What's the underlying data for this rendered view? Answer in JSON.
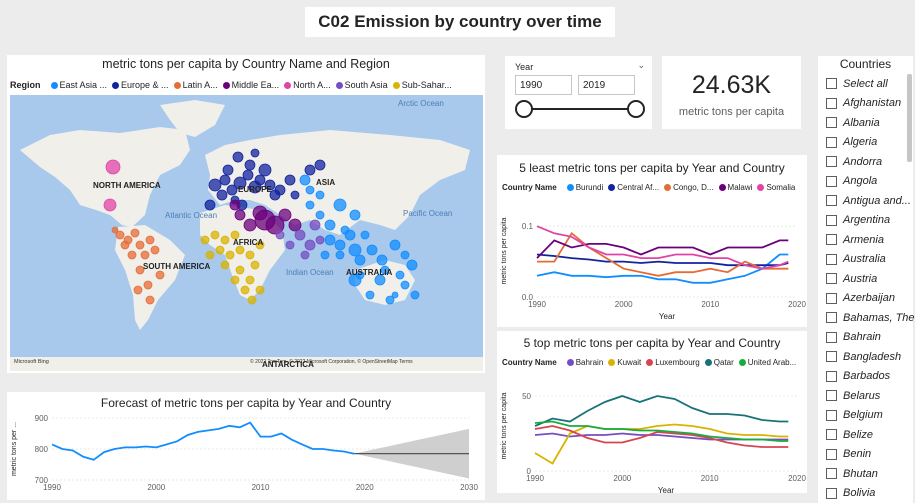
{
  "page_title": "C02 Emission by country over time",
  "map": {
    "title": "metric tons per capita by Country Name and Region",
    "legend_label": "Region",
    "legend": [
      {
        "name": "East Asia ...",
        "color": "#118dff"
      },
      {
        "name": "Europe & ...",
        "color": "#12239e"
      },
      {
        "name": "Latin A...",
        "color": "#e66c37"
      },
      {
        "name": "Middle Ea...",
        "color": "#6b007b"
      },
      {
        "name": "North A...",
        "color": "#e044a7"
      },
      {
        "name": "South Asia",
        "color": "#744ec2"
      },
      {
        "name": "Sub-Sahar...",
        "color": "#d9b300"
      }
    ],
    "labels": {
      "north_america": "NORTH AMERICA",
      "south_america": "SOUTH AMERICA",
      "europe": "EUROPE",
      "asia": "ASIA",
      "africa": "AFRICA",
      "australia": "AUSTRALIA",
      "antarctica": "ANTARCTICA",
      "arctic": "Arctic Ocean",
      "atlantic": "Atlantic Ocean",
      "pacific": "Pacific Ocean",
      "indian": "Indian Ocean"
    },
    "attribution": "© 2022 TomTom, © 2022 Microsoft Corporation, © OpenStreetMap  Terms",
    "bing": "Microsoft Bing"
  },
  "slicer": {
    "label": "Year",
    "from": "1990",
    "to": "2019",
    "fill_from": 0,
    "fill_to": 1
  },
  "kpi": {
    "value": "24.63K",
    "label": "metric tons per capita"
  },
  "countries": {
    "title": "Countries",
    "items": [
      "Select all",
      "Afghanistan",
      "Albania",
      "Algeria",
      "Andorra",
      "Angola",
      "Antigua and...",
      "Argentina",
      "Armenia",
      "Australia",
      "Austria",
      "Azerbaijan",
      "Bahamas, The",
      "Bahrain",
      "Bangladesh",
      "Barbados",
      "Belarus",
      "Belgium",
      "Belize",
      "Benin",
      "Bhutan",
      "Bolivia"
    ]
  },
  "forecast": {
    "title": "Forecast of metric tons per capita by Year and Country",
    "ylabel": "metric tons per ...",
    "yticks": [
      "900",
      "800",
      "700"
    ],
    "xticks": [
      "1990",
      "2000",
      "2010",
      "2020",
      "2030"
    ]
  },
  "least": {
    "title": "5 least metric tons per capita by Year and Country",
    "legend_label": "Country Name",
    "legend": [
      {
        "name": "Burundi",
        "color": "#118dff"
      },
      {
        "name": "Central Af...",
        "color": "#12239e"
      },
      {
        "name": "Congo, D...",
        "color": "#e66c37"
      },
      {
        "name": "Malawi",
        "color": "#6b007b"
      },
      {
        "name": "Somalia",
        "color": "#e044a7"
      }
    ],
    "ylabel": "metric tons per capita",
    "xlabel": "Year",
    "yticks": [
      "0.1",
      "0.0"
    ],
    "xticks": [
      "1990",
      "2000",
      "2010",
      "2020"
    ]
  },
  "top": {
    "title": "5 top metric tons per capita by Year and Country",
    "legend_label": "Country Name",
    "legend": [
      {
        "name": "Bahrain",
        "color": "#744ec2"
      },
      {
        "name": "Kuwait",
        "color": "#d9b300"
      },
      {
        "name": "Luxembourg",
        "color": "#d64550"
      },
      {
        "name": "Qatar",
        "color": "#197278"
      },
      {
        "name": "United Arab...",
        "color": "#1aab40"
      }
    ],
    "ylabel": "metric tons per capita",
    "xlabel": "Year",
    "yticks": [
      "50",
      "0"
    ],
    "xticks": [
      "1990",
      "2000",
      "2010",
      "2020"
    ]
  },
  "chart_data": [
    {
      "type": "line",
      "title": "Forecast of metric tons per capita by Year and Country",
      "ylabel": "metric tons per ...",
      "ylim": [
        700,
        900
      ],
      "x": [
        1990,
        1991,
        1992,
        1993,
        1994,
        1995,
        1996,
        1997,
        1998,
        1999,
        2000,
        2001,
        2002,
        2003,
        2004,
        2005,
        2006,
        2007,
        2008,
        2009,
        2010,
        2011,
        2012,
        2013,
        2014,
        2015,
        2016,
        2017,
        2018,
        2019
      ],
      "series": [
        {
          "values": [
            815,
            800,
            795,
            775,
            765,
            790,
            800,
            805,
            805,
            808,
            805,
            815,
            825,
            845,
            855,
            860,
            865,
            875,
            870,
            885,
            840,
            840,
            850,
            830,
            815,
            800,
            800,
            795,
            792,
            785
          ]
        }
      ],
      "forecast": {
        "x_end": 2030,
        "value": 785,
        "upper": 865,
        "lower": 705
      }
    },
    {
      "type": "line",
      "title": "5 least metric tons per capita by Year and Country",
      "xlabel": "Year",
      "ylabel": "metric tons per capita",
      "ylim": [
        0,
        0.13
      ],
      "x": [
        1990,
        1992,
        1994,
        1996,
        1998,
        2000,
        2002,
        2004,
        2006,
        2008,
        2010,
        2012,
        2014,
        2016,
        2018,
        2019
      ],
      "series": [
        {
          "name": "Burundi",
          "values": [
            0.03,
            0.035,
            0.03,
            0.03,
            0.028,
            0.03,
            0.03,
            0.025,
            0.025,
            0.02,
            0.02,
            0.025,
            0.03,
            0.04,
            0.06,
            0.06
          ]
        },
        {
          "name": "Central Af...",
          "values": [
            0.06,
            0.058,
            0.055,
            0.053,
            0.05,
            0.05,
            0.048,
            0.05,
            0.048,
            0.048,
            0.048,
            0.045,
            0.045,
            0.045,
            0.045,
            0.048
          ]
        },
        {
          "name": "Congo, D...",
          "values": [
            0.05,
            0.05,
            0.09,
            0.07,
            0.055,
            0.04,
            0.035,
            0.03,
            0.035,
            0.035,
            0.04,
            0.035,
            0.05,
            0.04,
            0.04,
            0.04
          ]
        },
        {
          "name": "Malawi",
          "values": [
            0.055,
            0.08,
            0.07,
            0.075,
            0.075,
            0.07,
            0.06,
            0.07,
            0.07,
            0.07,
            0.06,
            0.07,
            0.07,
            0.07,
            0.08,
            0.08
          ]
        },
        {
          "name": "Somalia",
          "values": [
            0.1,
            0.09,
            0.085,
            0.07,
            0.06,
            0.06,
            0.055,
            0.055,
            0.06,
            0.06,
            0.055,
            0.055,
            0.045,
            0.04,
            0.045,
            0.05
          ]
        }
      ]
    },
    {
      "type": "line",
      "title": "5 top metric tons per capita by Year and Country",
      "xlabel": "Year",
      "ylabel": "metric tons per capita",
      "ylim": [
        0,
        60
      ],
      "x": [
        1990,
        1992,
        1994,
        1996,
        1998,
        2000,
        2002,
        2004,
        2006,
        2008,
        2010,
        2012,
        2014,
        2016,
        2018,
        2019
      ],
      "series": [
        {
          "name": "Bahrain",
          "values": [
            24,
            25,
            23,
            24,
            24,
            25,
            24,
            24,
            23,
            22,
            21,
            21,
            21,
            21,
            21,
            21
          ]
        },
        {
          "name": "Kuwait",
          "values": [
            12,
            5,
            25,
            30,
            28,
            28,
            28,
            30,
            31,
            30,
            28,
            25,
            24,
            24,
            23,
            23
          ]
        },
        {
          "name": "Luxembourg",
          "values": [
            28,
            30,
            27,
            22,
            19,
            19,
            22,
            26,
            25,
            24,
            22,
            19,
            17,
            16,
            16,
            16
          ]
        },
        {
          "name": "Qatar",
          "values": [
            30,
            35,
            33,
            40,
            46,
            50,
            46,
            50,
            48,
            42,
            38,
            38,
            37,
            34,
            33,
            33
          ]
        },
        {
          "name": "United Arab...",
          "values": [
            32,
            33,
            30,
            30,
            28,
            28,
            27,
            27,
            26,
            25,
            23,
            22,
            21,
            21,
            20,
            20
          ]
        }
      ]
    }
  ]
}
